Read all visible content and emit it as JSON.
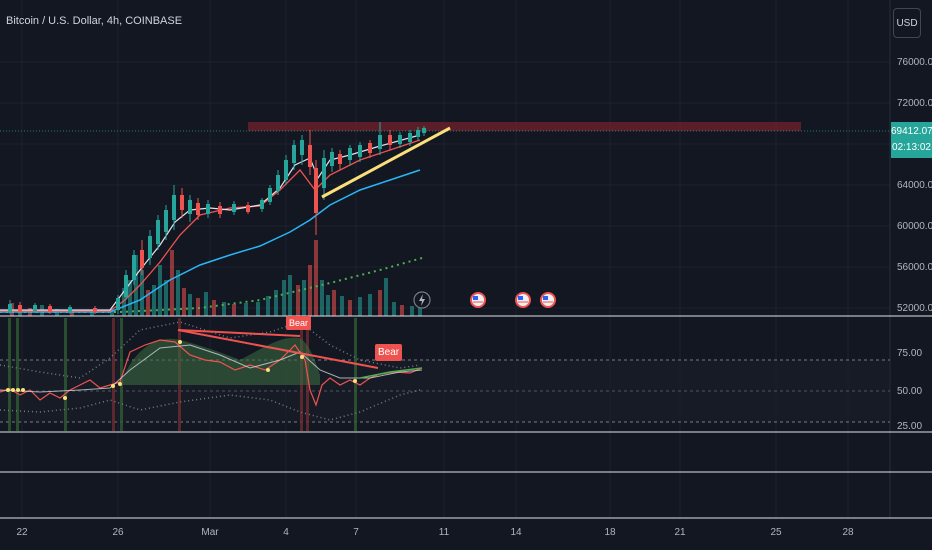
{
  "header": {
    "symbol_title": "Bitcoin / U.S. Dollar, 4h, COINBASE",
    "currency_button": "USD"
  },
  "price_axis": {
    "ticks": [
      "76000.00",
      "72000.00",
      "64000.00",
      "60000.00",
      "56000.00",
      "52000.00"
    ],
    "current_price": "69412.07",
    "countdown": "02:13:02"
  },
  "oscillator_axis": {
    "ticks": [
      "75.00",
      "50.00",
      "25.00"
    ]
  },
  "time_axis": {
    "ticks": [
      "22",
      "26",
      "Mar",
      "4",
      "7",
      "11",
      "14",
      "18",
      "21",
      "25",
      "28"
    ]
  },
  "annotations": {
    "bear_label_1": "Bear",
    "bear_label_2": "Bear"
  },
  "colors": {
    "background": "#131722",
    "up_candle": "#26a69a",
    "down_candle": "#ef5350",
    "trendline": "#fbe07a",
    "resistance_zone": "#7a2530",
    "accent": "#2962ff"
  },
  "event_icons": [
    "lightning-icon",
    "us-flag-icon",
    "us-flag-icon",
    "us-flag-icon"
  ]
}
